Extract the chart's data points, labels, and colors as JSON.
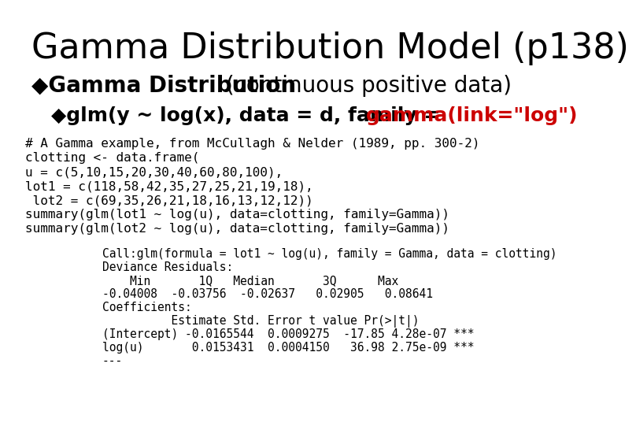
{
  "background_color": "#ffffff",
  "title": "Gamma Distribution Model (p138)",
  "title_fontsize": 32,
  "bullet1_bold": "◆Gamma Distribution",
  "bullet1_normal": " (continuous positive data)",
  "bullet1_fontsize": 20,
  "bullet2_black": "◆glm(y ~ log(x), data = d, family = ",
  "bullet2_red": "gamma(link=\"log\")",
  "bullet2_fontsize": 18,
  "code_block": "# A Gamma example, from McCullagh & Nelder (1989, pp. 300-2)\nclotting <- data.frame(\nu = c(5,10,15,20,30,40,60,80,100),\nlot1 = c(118,58,42,35,27,25,21,19,18),\n lot2 = c(69,35,26,21,18,16,13,12,12))\nsummary(glm(lot1 ~ log(u), data=clotting, family=Gamma))\nsummary(glm(lot2 ~ log(u), data=clotting, family=Gamma))",
  "code_fontsize": 11.5,
  "output_line1": "Call:glm(formula = lot1 ~ log(u), family = Gamma, data = clotting)",
  "output_line2": "Deviance Residuals:",
  "output_line3": "    Min       1Q   Median       3Q      Max",
  "output_line4": "-0.04008  -0.03756  -0.02637   0.02905   0.08641",
  "output_line5": "Coefficients:",
  "output_line6": "          Estimate Std. Error t value Pr(>|t|)",
  "output_line7": "(Intercept) -0.0165544  0.0009275  -17.85 4.28e-07 ***",
  "output_line8": "log(u)       0.0153431  0.0004150   36.98 2.75e-09 ***",
  "output_line9": "---",
  "output_fontsize": 10.5
}
